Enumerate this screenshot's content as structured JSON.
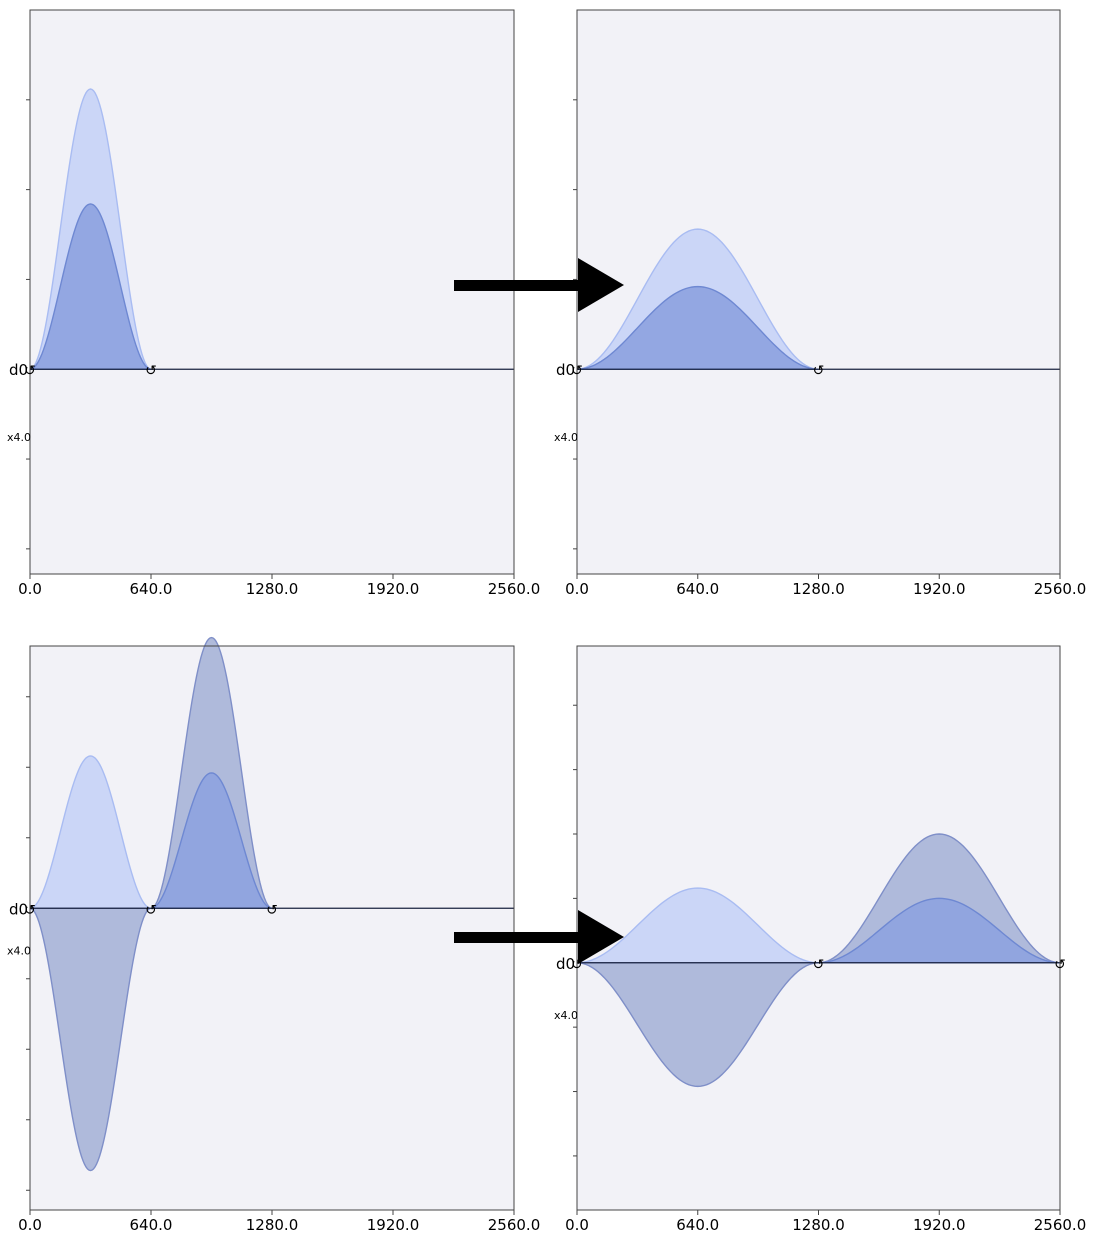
{
  "colors": {
    "panel_bg": "#f2f2f7",
    "light_fill": "#c8d4f7",
    "light_stroke": "#a9bcf2",
    "mid_fill": "#8ea3df",
    "mid_stroke": "#6e88d2",
    "dark_fill": "#a9b5d8",
    "dark_stroke": "#7f8fc8",
    "axis": "#000000",
    "arrow": "#000000"
  },
  "node_glyph": "↺",
  "chart_data": [
    {
      "type": "area",
      "wire_label": "d0",
      "scale_label": "x4.0",
      "xlim": [
        0,
        2560
      ],
      "ylim": [
        -0.57,
        1.0
      ],
      "x_ticks": [
        "0.0",
        "640.0",
        "1280.0",
        "1920.0",
        "2560.0"
      ],
      "x_tick_values": [
        0,
        640,
        1280,
        1920,
        2560
      ],
      "nodes": [
        0,
        640
      ],
      "pulses": [
        {
          "start": 0,
          "end": 640,
          "amplitude": 0.78,
          "style": "light"
        },
        {
          "start": 0,
          "end": 640,
          "amplitude": 0.46,
          "style": "mid"
        }
      ]
    },
    {
      "type": "area",
      "wire_label": "d0",
      "scale_label": "x4.0",
      "xlim": [
        0,
        2560
      ],
      "ylim": [
        -0.57,
        1.0
      ],
      "x_ticks": [
        "0.0",
        "640.0",
        "1280.0",
        "1920.0",
        "2560.0"
      ],
      "x_tick_values": [
        0,
        640,
        1280,
        1920,
        2560
      ],
      "nodes": [
        0,
        1280
      ],
      "pulses": [
        {
          "start": 0,
          "end": 1280,
          "amplitude": 0.39,
          "style": "light"
        },
        {
          "start": 0,
          "end": 1280,
          "amplitude": 0.23,
          "style": "mid"
        }
      ]
    },
    {
      "type": "area",
      "wire_label": "d0",
      "scale_label": "x4.0",
      "xlim": [
        0,
        2560
      ],
      "ylim": [
        -1.07,
        0.93
      ],
      "x_ticks": [
        "0.0",
        "640.0",
        "1280.0",
        "1920.0",
        "2560.0"
      ],
      "x_tick_values": [
        0,
        640,
        1280,
        1920,
        2560
      ],
      "nodes": [
        0,
        640,
        1280
      ],
      "pulses": [
        {
          "start": 0,
          "end": 640,
          "amplitude": 0.54,
          "style": "light"
        },
        {
          "start": 0,
          "end": 640,
          "amplitude": -0.93,
          "style": "dark"
        },
        {
          "start": 640,
          "end": 1280,
          "amplitude": 0.96,
          "style": "dark"
        },
        {
          "start": 640,
          "end": 1280,
          "amplitude": 0.48,
          "style": "mid"
        }
      ]
    },
    {
      "type": "area",
      "wire_label": "d0",
      "scale_label": "x4.0",
      "xlim": [
        0,
        2560
      ],
      "ylim": [
        -0.96,
        1.23
      ],
      "x_ticks": [
        "0.0",
        "640.0",
        "1280.0",
        "1920.0",
        "2560.0"
      ],
      "x_tick_values": [
        0,
        640,
        1280,
        1920,
        2560
      ],
      "nodes": [
        0,
        1280,
        2560
      ],
      "pulses": [
        {
          "start": 0,
          "end": 1280,
          "amplitude": 0.29,
          "style": "light"
        },
        {
          "start": 0,
          "end": 1280,
          "amplitude": -0.48,
          "style": "dark"
        },
        {
          "start": 1280,
          "end": 2560,
          "amplitude": 0.5,
          "style": "dark"
        },
        {
          "start": 1280,
          "end": 2560,
          "amplitude": 0.25,
          "style": "mid"
        }
      ]
    }
  ]
}
